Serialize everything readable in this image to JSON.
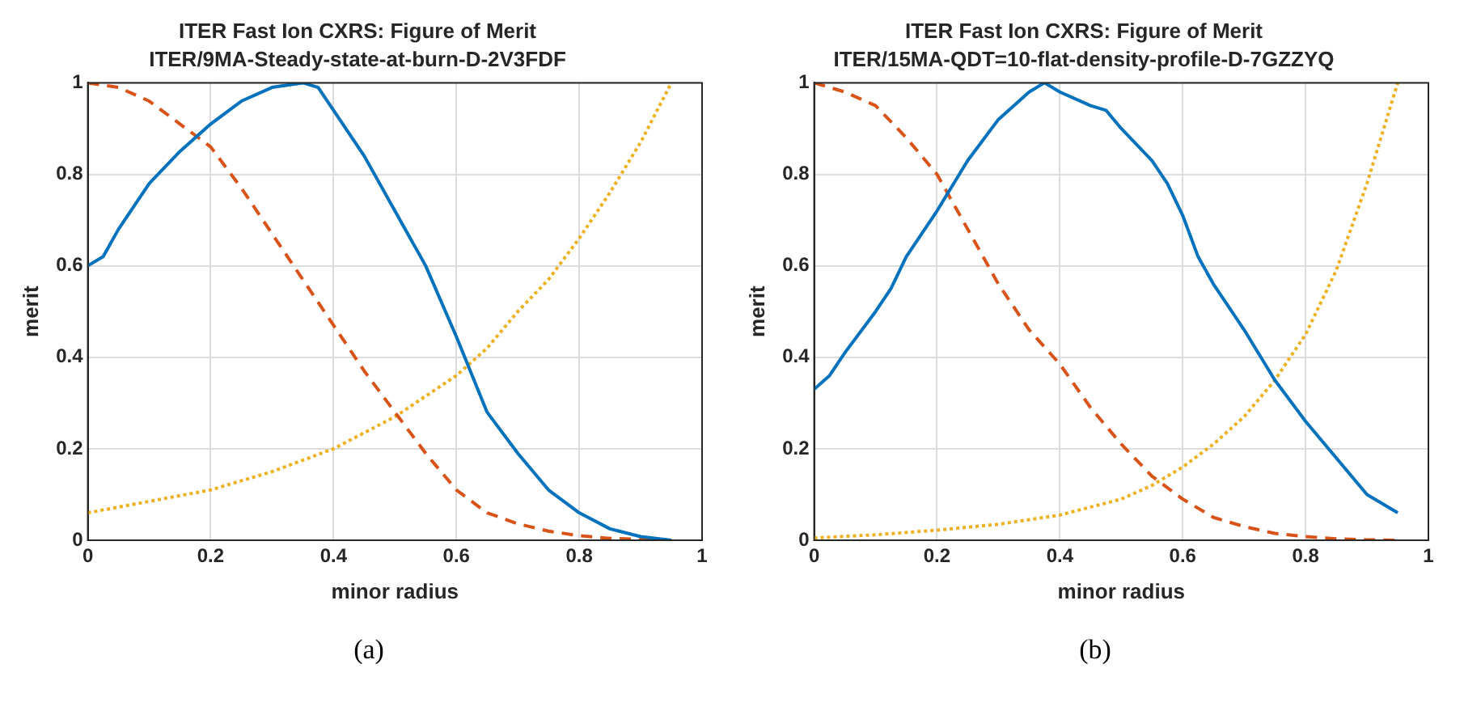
{
  "chart_data": [
    {
      "type": "line",
      "title": "ITER Fast Ion CXRS: Figure of Merit",
      "subtitle": "ITER/9MA-Steady-state-at-burn-D-2V3FDF",
      "xlabel": "minor radius",
      "ylabel": "merit",
      "xlim": [
        0,
        1
      ],
      "ylim": [
        0,
        1
      ],
      "xticks": [
        0,
        0.2,
        0.4,
        0.6,
        0.8,
        1
      ],
      "yticks": [
        0,
        0.2,
        0.4,
        0.6,
        0.8,
        1
      ],
      "grid": true,
      "marker": "none",
      "annotations": [
        "(a)"
      ],
      "series": [
        {
          "color": "#0072bd",
          "line_style": "solid",
          "x": [
            0,
            0.025,
            0.05,
            0.1,
            0.15,
            0.2,
            0.25,
            0.3,
            0.35,
            0.375,
            0.4,
            0.45,
            0.5,
            0.55,
            0.6,
            0.65,
            0.7,
            0.75,
            0.8,
            0.85,
            0.9,
            0.95
          ],
          "values": [
            0.6,
            0.62,
            0.68,
            0.78,
            0.85,
            0.91,
            0.96,
            0.99,
            1.0,
            0.99,
            0.94,
            0.84,
            0.72,
            0.6,
            0.445,
            0.28,
            0.19,
            0.11,
            0.06,
            0.025,
            0.008,
            0
          ]
        },
        {
          "color": "#d95319",
          "line_style": "dashed",
          "x": [
            0,
            0.05,
            0.1,
            0.15,
            0.2,
            0.25,
            0.3,
            0.35,
            0.4,
            0.45,
            0.5,
            0.55,
            0.6,
            0.65,
            0.7,
            0.75,
            0.8,
            0.85,
            0.9,
            0.95
          ],
          "values": [
            1.0,
            0.99,
            0.96,
            0.91,
            0.86,
            0.77,
            0.67,
            0.57,
            0.47,
            0.37,
            0.28,
            0.19,
            0.11,
            0.06,
            0.036,
            0.02,
            0.01,
            0.004,
            0.002,
            0
          ]
        },
        {
          "color": "#edb120",
          "line_style": "dotted",
          "x": [
            0,
            0.1,
            0.2,
            0.3,
            0.4,
            0.5,
            0.6,
            0.65,
            0.7,
            0.75,
            0.8,
            0.85,
            0.9,
            0.95
          ],
          "values": [
            0.06,
            0.085,
            0.11,
            0.15,
            0.2,
            0.27,
            0.36,
            0.42,
            0.5,
            0.57,
            0.66,
            0.76,
            0.87,
            1.0
          ]
        }
      ]
    },
    {
      "type": "line",
      "title": "ITER Fast Ion CXRS: Figure of Merit",
      "subtitle": "ITER/15MA-QDT=10-flat-density-profile-D-7GZZYQ",
      "xlabel": "minor radius",
      "ylabel": "merit",
      "xlim": [
        0,
        1
      ],
      "ylim": [
        0,
        1
      ],
      "xticks": [
        0,
        0.2,
        0.4,
        0.6,
        0.8,
        1
      ],
      "yticks": [
        0,
        0.2,
        0.4,
        0.6,
        0.8,
        1
      ],
      "grid": true,
      "marker": "none",
      "annotations": [
        "(b)"
      ],
      "series": [
        {
          "color": "#0072bd",
          "line_style": "solid",
          "x": [
            0,
            0.025,
            0.05,
            0.1,
            0.125,
            0.15,
            0.2,
            0.25,
            0.3,
            0.35,
            0.375,
            0.4,
            0.45,
            0.475,
            0.5,
            0.55,
            0.575,
            0.6,
            0.625,
            0.65,
            0.7,
            0.75,
            0.8,
            0.85,
            0.9,
            0.95
          ],
          "values": [
            0.33,
            0.36,
            0.41,
            0.5,
            0.55,
            0.62,
            0.72,
            0.83,
            0.92,
            0.98,
            1.0,
            0.98,
            0.95,
            0.94,
            0.9,
            0.83,
            0.78,
            0.71,
            0.62,
            0.56,
            0.46,
            0.35,
            0.26,
            0.18,
            0.1,
            0.06
          ]
        },
        {
          "color": "#d95319",
          "line_style": "dashed",
          "x": [
            0,
            0.05,
            0.1,
            0.15,
            0.2,
            0.25,
            0.3,
            0.35,
            0.4,
            0.45,
            0.5,
            0.55,
            0.6,
            0.65,
            0.7,
            0.75,
            0.8,
            0.85,
            0.9,
            0.95
          ],
          "values": [
            1.0,
            0.98,
            0.95,
            0.88,
            0.8,
            0.68,
            0.56,
            0.46,
            0.385,
            0.29,
            0.21,
            0.14,
            0.09,
            0.05,
            0.03,
            0.015,
            0.008,
            0.003,
            0.001,
            0
          ]
        },
        {
          "color": "#edb120",
          "line_style": "dotted",
          "x": [
            0,
            0.1,
            0.2,
            0.3,
            0.4,
            0.5,
            0.55,
            0.6,
            0.65,
            0.7,
            0.75,
            0.8,
            0.85,
            0.9,
            0.95
          ],
          "values": [
            0.005,
            0.012,
            0.022,
            0.035,
            0.055,
            0.09,
            0.12,
            0.16,
            0.21,
            0.27,
            0.35,
            0.45,
            0.59,
            0.78,
            1.0
          ]
        }
      ]
    }
  ]
}
